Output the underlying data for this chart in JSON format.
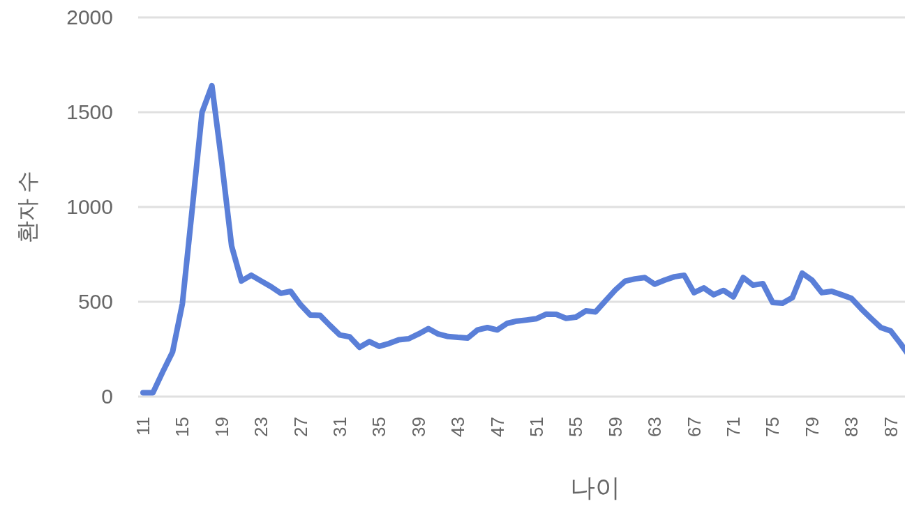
{
  "chart_data": {
    "type": "line",
    "xlabel": "나이",
    "ylabel": "환자 수",
    "categories": [
      "11",
      null,
      null,
      null,
      "15",
      null,
      null,
      null,
      "19",
      null,
      null,
      null,
      "23",
      null,
      null,
      null,
      "27",
      null,
      null,
      null,
      "31",
      null,
      null,
      null,
      "35",
      null,
      null,
      null,
      "39",
      null,
      null,
      null,
      "43",
      null,
      null,
      null,
      "47",
      null,
      null,
      null,
      "51",
      null,
      null,
      null,
      "55",
      null,
      null,
      null,
      "59",
      null,
      null,
      null,
      "63",
      null,
      null,
      null,
      "67",
      null,
      null,
      null,
      "71",
      null,
      null,
      null,
      "75",
      null,
      null,
      null,
      "79",
      null,
      null,
      null,
      "83",
      null,
      null,
      null,
      "87",
      null,
      null
    ],
    "series": [
      {
        "color": "#5a7fd8",
        "values": [
          20,
          20,
          130,
          235,
          490,
          990,
          1500,
          1640,
          1235,
          795,
          610,
          640,
          610,
          580,
          545,
          555,
          485,
          430,
          428,
          375,
          325,
          315,
          260,
          290,
          265,
          280,
          300,
          305,
          330,
          358,
          330,
          317,
          312,
          309,
          352,
          364,
          352,
          386,
          398,
          404,
          411,
          435,
          434,
          413,
          419,
          452,
          447,
          505,
          562,
          609,
          621,
          628,
          593,
          614,
          632,
          640,
          548,
          573,
          537,
          560,
          526,
          628,
          588,
          596,
          496,
          493,
          522,
          651,
          614,
          548,
          555,
          537,
          518,
          463,
          412,
          364,
          346,
          279,
          206
        ]
      }
    ],
    "ylim": [
      0,
      2000
    ],
    "yticks": [
      0,
      500,
      1000,
      1500,
      2000
    ],
    "grid": "y"
  }
}
